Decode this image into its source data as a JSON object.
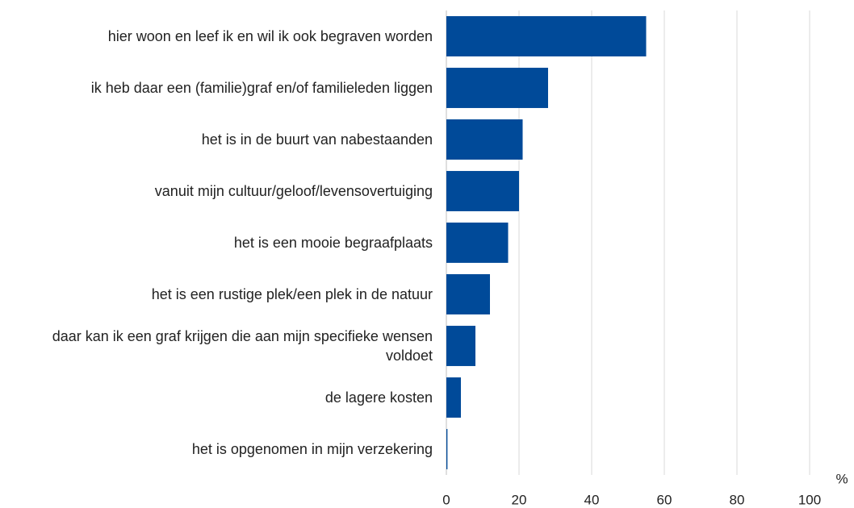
{
  "chart_data": {
    "type": "bar",
    "orientation": "horizontal",
    "categories": [
      "hier woon en leef ik en wil ik ook begraven worden",
      "ik heb daar een (familie)graf en/of familieleden liggen",
      "het is in de buurt van nabestaanden",
      "vanuit mijn cultuur/geloof/levensovertuiging",
      "het is een mooie begraafplaats",
      "het is een rustige plek/een plek in de natuur",
      "daar kan ik een graf krijgen die aan mijn specifieke wensen voldoet",
      "de lagere kosten",
      "het is opgenomen in mijn verzekering"
    ],
    "values": [
      55,
      28,
      21,
      20,
      17,
      12,
      8,
      4,
      0.3
    ],
    "color": "#004a99",
    "xlim": [
      0,
      100
    ],
    "xticks": [
      0,
      20,
      40,
      60,
      80,
      100
    ],
    "xlabel": "%",
    "grid": true
  }
}
